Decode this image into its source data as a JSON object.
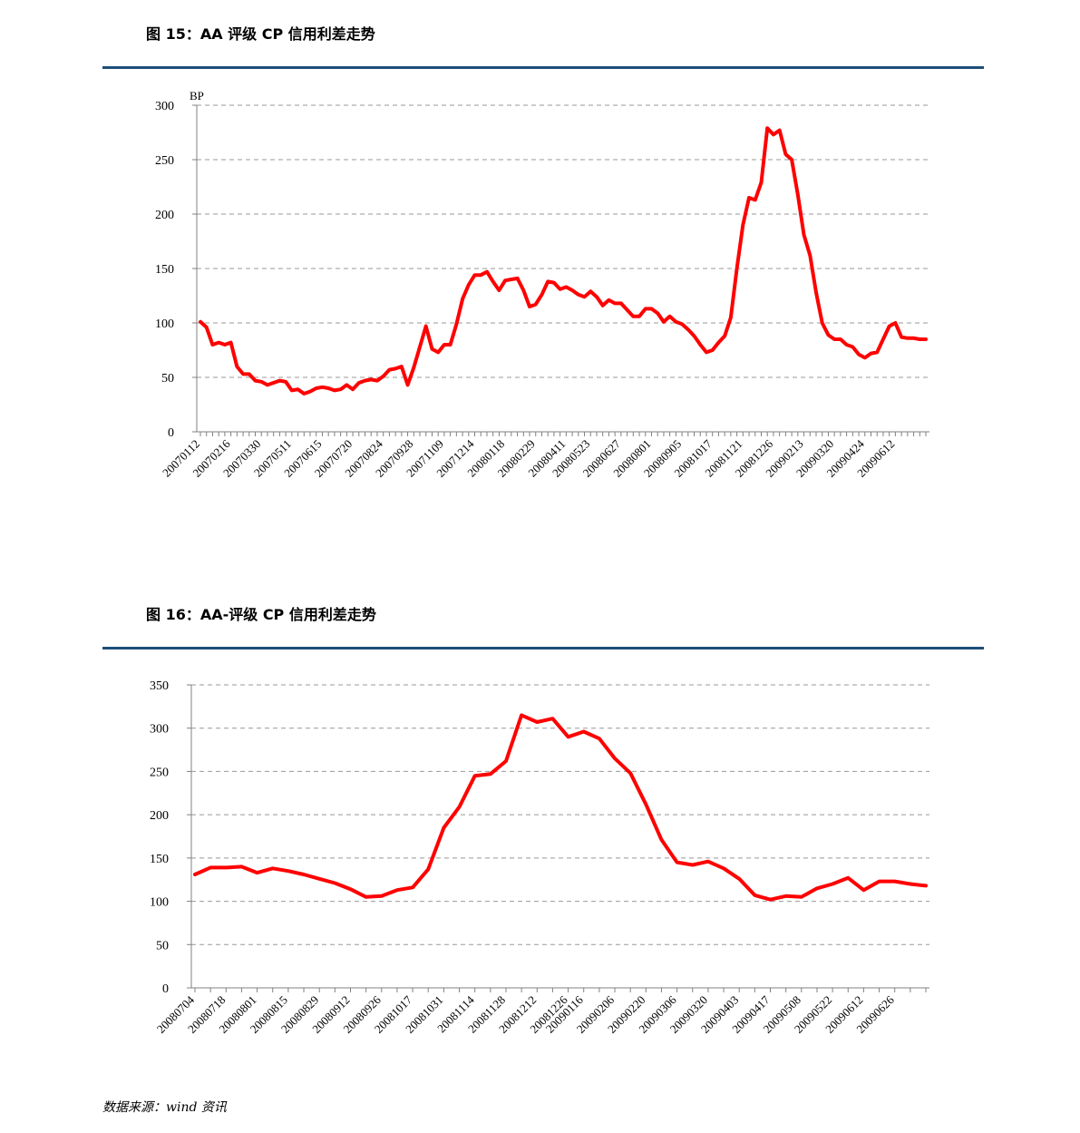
{
  "figures": [
    {
      "title": "图 15：AA 评级 CP 信用利差走势"
    },
    {
      "title": "图 16：AA-评级 CP 信用利差走势"
    }
  ],
  "source": "数据来源：wind 资讯",
  "colors": {
    "line": "#ff0000",
    "rule": "#1f4e79",
    "grid": "#999999"
  },
  "chart_data": [
    {
      "type": "line",
      "title": "图 15：AA 评级 CP 信用利差走势",
      "ylabel": "BP",
      "ylim": [
        0,
        300
      ],
      "yticks": [
        0,
        50,
        100,
        150,
        200,
        250,
        300
      ],
      "grid": true,
      "x_tick_labels": [
        "20070112",
        "20070216",
        "20070330",
        "20070511",
        "20070615",
        "20070720",
        "20070824",
        "20070928",
        "20071109",
        "20071214",
        "20080118",
        "20080229",
        "20080411",
        "20080523",
        "20080627",
        "20080801",
        "20080905",
        "20081017",
        "20081121",
        "20081226",
        "20090213",
        "20090320",
        "20090424",
        "20090612"
      ],
      "series": [
        {
          "values": [
            101,
            96,
            80,
            82,
            80,
            82,
            60,
            53,
            53,
            47,
            46,
            43,
            45,
            47,
            46,
            38,
            39,
            35,
            37,
            40,
            41,
            40,
            38,
            39,
            43,
            39,
            45,
            47,
            48,
            47,
            51,
            57,
            58,
            60,
            43,
            59,
            78,
            97,
            76,
            73,
            80,
            80,
            99,
            122,
            135,
            144,
            144,
            147,
            138,
            130,
            139,
            140,
            141,
            130,
            115,
            117,
            126,
            138,
            137,
            131,
            133,
            130,
            126,
            124,
            129,
            124,
            116,
            121,
            118,
            118,
            112,
            106,
            106,
            113,
            113,
            109,
            101,
            106,
            101,
            99,
            94,
            88,
            80,
            73,
            75,
            82,
            88,
            105,
            150,
            190,
            215,
            213,
            229,
            279,
            273,
            277,
            255,
            250,
            218,
            181,
            162,
            128,
            100,
            89,
            85,
            85,
            80,
            78,
            71,
            68,
            72,
            73,
            85,
            97,
            100,
            87,
            86,
            86,
            85,
            85
          ]
        }
      ]
    },
    {
      "type": "line",
      "title": "图 16：AA-评级 CP 信用利差走势",
      "ylim": [
        0,
        350
      ],
      "yticks": [
        0,
        50,
        100,
        150,
        200,
        250,
        300,
        350
      ],
      "grid": true,
      "x_tick_labels": [
        "20080704",
        "20080718",
        "20080801",
        "20080815",
        "20080829",
        "20080912",
        "20080926",
        "20081017",
        "20081031",
        "20081114",
        "20081128",
        "20081212",
        "20081226",
        "20090116",
        "20090206",
        "20090220",
        "20090306",
        "20090320",
        "20090403",
        "20090417",
        "20090508",
        "20090522",
        "20090612",
        "20090626"
      ],
      "series": [
        {
          "values": [
            131,
            139,
            139,
            140,
            133,
            138,
            135,
            131,
            126,
            121,
            114,
            105,
            106,
            113,
            116,
            137,
            185,
            209,
            245,
            247,
            262,
            315,
            307,
            311,
            290,
            296,
            288,
            265,
            248,
            212,
            171,
            145,
            142,
            146,
            138,
            126,
            107,
            102,
            106,
            105,
            115,
            120,
            127,
            113,
            123,
            123,
            120,
            118
          ]
        }
      ]
    }
  ]
}
